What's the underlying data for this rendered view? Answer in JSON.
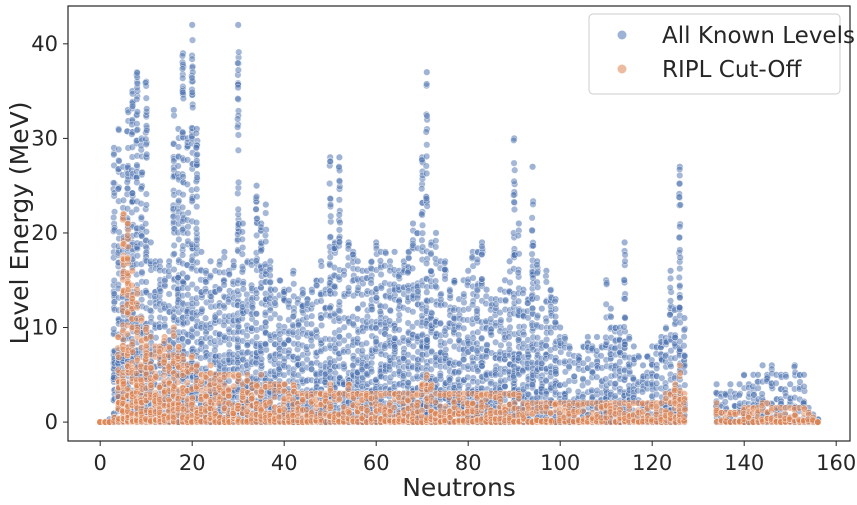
{
  "chart_data": {
    "type": "scatter",
    "title": "",
    "xlabel": "Neutrons",
    "ylabel": "Level Energy (MeV)",
    "xlim": [
      -7,
      163
    ],
    "ylim": [
      -2,
      44
    ],
    "xticks": [
      0,
      20,
      40,
      60,
      80,
      100,
      120,
      140,
      160
    ],
    "yticks": [
      0,
      10,
      20,
      30,
      40
    ],
    "grid": false,
    "legend_position": "top-right",
    "colors": {
      "all_levels": "#4c72b0",
      "ripl": "#dd8452",
      "axis": "#262626",
      "background": "#ffffff"
    },
    "series": [
      {
        "name": "All Known Levels",
        "color": "#4c72b0",
        "envelope": [
          [
            2,
            0.3
          ],
          [
            3,
            29
          ],
          [
            4,
            31
          ],
          [
            5,
            27
          ],
          [
            6,
            33
          ],
          [
            7,
            35
          ],
          [
            8,
            37
          ],
          [
            9,
            30
          ],
          [
            10,
            36
          ],
          [
            11,
            19
          ],
          [
            12,
            17
          ],
          [
            13,
            17
          ],
          [
            14,
            16
          ],
          [
            15,
            17
          ],
          [
            16,
            33
          ],
          [
            17,
            31
          ],
          [
            18,
            39
          ],
          [
            19,
            30
          ],
          [
            20,
            42
          ],
          [
            21,
            31
          ],
          [
            22,
            18
          ],
          [
            23,
            16
          ],
          [
            24,
            17
          ],
          [
            25,
            16
          ],
          [
            26,
            17
          ],
          [
            27,
            18
          ],
          [
            28,
            16
          ],
          [
            29,
            17
          ],
          [
            30,
            42
          ],
          [
            31,
            21
          ],
          [
            32,
            17
          ],
          [
            33,
            17
          ],
          [
            34,
            25
          ],
          [
            35,
            21
          ],
          [
            36,
            23
          ],
          [
            37,
            17
          ],
          [
            38,
            14
          ],
          [
            39,
            15
          ],
          [
            40,
            14
          ],
          [
            41,
            14
          ],
          [
            42,
            16
          ],
          [
            43,
            13
          ],
          [
            44,
            14
          ],
          [
            45,
            13
          ],
          [
            46,
            14
          ],
          [
            47,
            15
          ],
          [
            48,
            17
          ],
          [
            49,
            14
          ],
          [
            50,
            28
          ],
          [
            51,
            19
          ],
          [
            52,
            28
          ],
          [
            53,
            16
          ],
          [
            54,
            19
          ],
          [
            55,
            18
          ],
          [
            56,
            17
          ],
          [
            57,
            16
          ],
          [
            58,
            16
          ],
          [
            59,
            17
          ],
          [
            60,
            19
          ],
          [
            61,
            18
          ],
          [
            62,
            18
          ],
          [
            63,
            17
          ],
          [
            64,
            18
          ],
          [
            65,
            16
          ],
          [
            66,
            17
          ],
          [
            67,
            18
          ],
          [
            68,
            21
          ],
          [
            69,
            20
          ],
          [
            70,
            28
          ],
          [
            71,
            37
          ],
          [
            72,
            19
          ],
          [
            73,
            20
          ],
          [
            74,
            17
          ],
          [
            75,
            17
          ],
          [
            76,
            14
          ],
          [
            77,
            15
          ],
          [
            78,
            13
          ],
          [
            79,
            15
          ],
          [
            80,
            16
          ],
          [
            81,
            18
          ],
          [
            82,
            18
          ],
          [
            83,
            19
          ],
          [
            84,
            14
          ],
          [
            85,
            13
          ],
          [
            86,
            13
          ],
          [
            87,
            14
          ],
          [
            88,
            15
          ],
          [
            89,
            17
          ],
          [
            90,
            30
          ],
          [
            91,
            21
          ],
          [
            92,
            14
          ],
          [
            93,
            13
          ],
          [
            94,
            27
          ],
          [
            95,
            17
          ],
          [
            96,
            12
          ],
          [
            97,
            16
          ],
          [
            98,
            14
          ],
          [
            99,
            13
          ],
          [
            100,
            10
          ],
          [
            101,
            9
          ],
          [
            102,
            8
          ],
          [
            103,
            7
          ],
          [
            104,
            7
          ],
          [
            105,
            8
          ],
          [
            106,
            9
          ],
          [
            107,
            8
          ],
          [
            108,
            9
          ],
          [
            109,
            8
          ],
          [
            110,
            15
          ],
          [
            111,
            12
          ],
          [
            112,
            10
          ],
          [
            113,
            10
          ],
          [
            114,
            19
          ],
          [
            115,
            9
          ],
          [
            116,
            8
          ],
          [
            117,
            7
          ],
          [
            118,
            6
          ],
          [
            119,
            7
          ],
          [
            120,
            8
          ],
          [
            121,
            8
          ],
          [
            122,
            9
          ],
          [
            123,
            10
          ],
          [
            124,
            16
          ],
          [
            125,
            12
          ],
          [
            126,
            27
          ],
          [
            127,
            11
          ],
          [
            134,
            4
          ],
          [
            135,
            3
          ],
          [
            136,
            3
          ],
          [
            137,
            4
          ],
          [
            138,
            3
          ],
          [
            139,
            4
          ],
          [
            140,
            5
          ],
          [
            141,
            4
          ],
          [
            142,
            5
          ],
          [
            143,
            5
          ],
          [
            144,
            6
          ],
          [
            145,
            5
          ],
          [
            146,
            6
          ],
          [
            147,
            5
          ],
          [
            148,
            5
          ],
          [
            149,
            5
          ],
          [
            150,
            4
          ],
          [
            151,
            6
          ],
          [
            152,
            5
          ],
          [
            153,
            5
          ],
          [
            154,
            1.5
          ],
          [
            155,
            0.8
          ],
          [
            156,
            0.3
          ]
        ]
      },
      {
        "name": "RIPL Cut-Off",
        "color": "#dd8452",
        "envelope": [
          [
            0,
            0
          ],
          [
            1,
            0
          ],
          [
            2,
            0
          ],
          [
            3,
            0.5
          ],
          [
            4,
            9
          ],
          [
            5,
            22
          ],
          [
            6,
            21
          ],
          [
            7,
            16
          ],
          [
            8,
            14
          ],
          [
            9,
            11
          ],
          [
            10,
            10
          ],
          [
            11,
            9
          ],
          [
            12,
            8
          ],
          [
            13,
            8
          ],
          [
            14,
            9
          ],
          [
            15,
            8
          ],
          [
            16,
            10
          ],
          [
            17,
            8
          ],
          [
            18,
            7
          ],
          [
            19,
            6
          ],
          [
            20,
            7
          ],
          [
            21,
            6
          ],
          [
            22,
            5
          ],
          [
            23,
            5
          ],
          [
            24,
            6
          ],
          [
            25,
            5
          ],
          [
            26,
            5
          ],
          [
            27,
            5
          ],
          [
            28,
            5
          ],
          [
            29,
            5
          ],
          [
            30,
            5
          ],
          [
            31,
            4
          ],
          [
            32,
            5
          ],
          [
            33,
            4
          ],
          [
            34,
            4
          ],
          [
            35,
            5
          ],
          [
            36,
            4
          ],
          [
            37,
            4
          ],
          [
            38,
            4
          ],
          [
            39,
            4
          ],
          [
            40,
            4
          ],
          [
            41,
            3
          ],
          [
            42,
            4
          ],
          [
            43,
            3
          ],
          [
            44,
            3
          ],
          [
            45,
            3
          ],
          [
            46,
            3
          ],
          [
            47,
            3
          ],
          [
            48,
            3
          ],
          [
            49,
            3
          ],
          [
            50,
            4
          ],
          [
            51,
            3
          ],
          [
            52,
            3
          ],
          [
            53,
            3
          ],
          [
            54,
            4
          ],
          [
            55,
            3
          ],
          [
            56,
            3
          ],
          [
            57,
            3
          ],
          [
            58,
            3
          ],
          [
            59,
            3
          ],
          [
            60,
            3
          ],
          [
            61,
            3
          ],
          [
            62,
            3
          ],
          [
            63,
            3
          ],
          [
            64,
            3
          ],
          [
            65,
            3
          ],
          [
            66,
            3
          ],
          [
            67,
            3
          ],
          [
            68,
            3
          ],
          [
            69,
            3
          ],
          [
            70,
            4
          ],
          [
            71,
            5
          ],
          [
            72,
            4
          ],
          [
            73,
            3
          ],
          [
            74,
            3
          ],
          [
            75,
            3
          ],
          [
            76,
            3
          ],
          [
            77,
            3
          ],
          [
            78,
            3
          ],
          [
            79,
            3
          ],
          [
            80,
            3
          ],
          [
            81,
            3
          ],
          [
            82,
            3
          ],
          [
            83,
            3
          ],
          [
            84,
            3
          ],
          [
            85,
            3
          ],
          [
            86,
            3
          ],
          [
            87,
            3
          ],
          [
            88,
            3
          ],
          [
            89,
            3
          ],
          [
            90,
            3
          ],
          [
            91,
            3
          ],
          [
            92,
            2
          ],
          [
            93,
            2
          ],
          [
            94,
            2
          ],
          [
            95,
            2
          ],
          [
            96,
            2
          ],
          [
            97,
            2
          ],
          [
            98,
            2
          ],
          [
            99,
            2
          ],
          [
            100,
            2
          ],
          [
            101,
            2
          ],
          [
            102,
            2
          ],
          [
            103,
            2
          ],
          [
            104,
            2
          ],
          [
            105,
            2
          ],
          [
            106,
            2
          ],
          [
            107,
            2
          ],
          [
            108,
            2
          ],
          [
            109,
            2
          ],
          [
            110,
            2
          ],
          [
            111,
            2
          ],
          [
            112,
            2
          ],
          [
            113,
            2
          ],
          [
            114,
            2
          ],
          [
            115,
            2
          ],
          [
            116,
            2
          ],
          [
            117,
            2
          ],
          [
            118,
            2
          ],
          [
            119,
            2
          ],
          [
            120,
            2
          ],
          [
            121,
            2
          ],
          [
            122,
            2
          ],
          [
            123,
            3
          ],
          [
            124,
            3
          ],
          [
            125,
            4
          ],
          [
            126,
            6
          ],
          [
            127,
            3
          ],
          [
            134,
            2
          ],
          [
            135,
            1
          ],
          [
            136,
            1
          ],
          [
            137,
            1
          ],
          [
            138,
            1
          ],
          [
            139,
            1
          ],
          [
            140,
            1.5
          ],
          [
            141,
            1.5
          ],
          [
            142,
            1.5
          ],
          [
            143,
            1.5
          ],
          [
            144,
            2
          ],
          [
            145,
            2
          ],
          [
            146,
            1.5
          ],
          [
            147,
            1.5
          ],
          [
            148,
            1.5
          ],
          [
            149,
            1.5
          ],
          [
            150,
            1.5
          ],
          [
            151,
            1.5
          ],
          [
            152,
            1.5
          ],
          [
            153,
            1.5
          ],
          [
            154,
            1
          ],
          [
            155,
            0.5
          ],
          [
            156,
            0
          ]
        ]
      }
    ]
  }
}
